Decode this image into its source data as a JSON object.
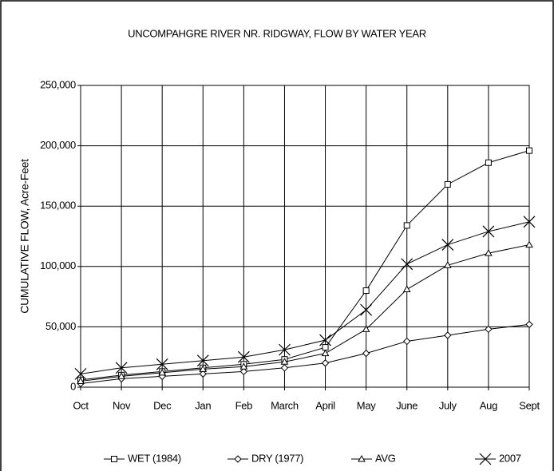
{
  "chart_data": {
    "type": "line",
    "title": "UNCOMPAHGRE RIVER NR. RIDGWAY, FLOW BY WATER YEAR",
    "y_label": "CUMULATIVE FLOW, Acre-Feet",
    "categories": [
      "Oct",
      "Nov",
      "Dec",
      "Jan",
      "Feb",
      "March",
      "April",
      "May",
      "June",
      "July",
      "Aug",
      "Sept"
    ],
    "series": [
      {
        "name": "WET (1984)",
        "color": "#000000",
        "marker": "square",
        "values": [
          6000,
          10000,
          13000,
          16000,
          19000,
          23000,
          33000,
          80000,
          134000,
          168000,
          186000,
          196000
        ]
      },
      {
        "name": "DRY (1977)",
        "color": "#000000",
        "marker": "diamond",
        "values": [
          3000,
          7000,
          9000,
          11000,
          13000,
          16000,
          20000,
          28000,
          38000,
          43000,
          48000,
          52000
        ]
      },
      {
        "name": "AVG",
        "color": "#000000",
        "marker": "triangle",
        "values": [
          5000,
          9000,
          12000,
          15000,
          17000,
          21000,
          28000,
          48000,
          81000,
          101000,
          111000,
          118000
        ]
      },
      {
        "name": "2007",
        "color": "#000000",
        "marker": "x",
        "values": [
          11000,
          16000,
          19000,
          22000,
          25000,
          31000,
          39000,
          64000,
          102000,
          118000,
          129000,
          137000
        ]
      }
    ],
    "ylim": [
      0,
      250000
    ],
    "yticks": [
      0,
      {
        "value": 50000,
        "label": "50,000"
      },
      {
        "value": 100000,
        "label": "100,000"
      },
      {
        "value": 150000,
        "label": "150,000"
      },
      {
        "value": 200000,
        "label": "200,000"
      },
      {
        "value": 250000,
        "label": "250,000"
      }
    ],
    "grid": true,
    "legend": "bottom"
  }
}
